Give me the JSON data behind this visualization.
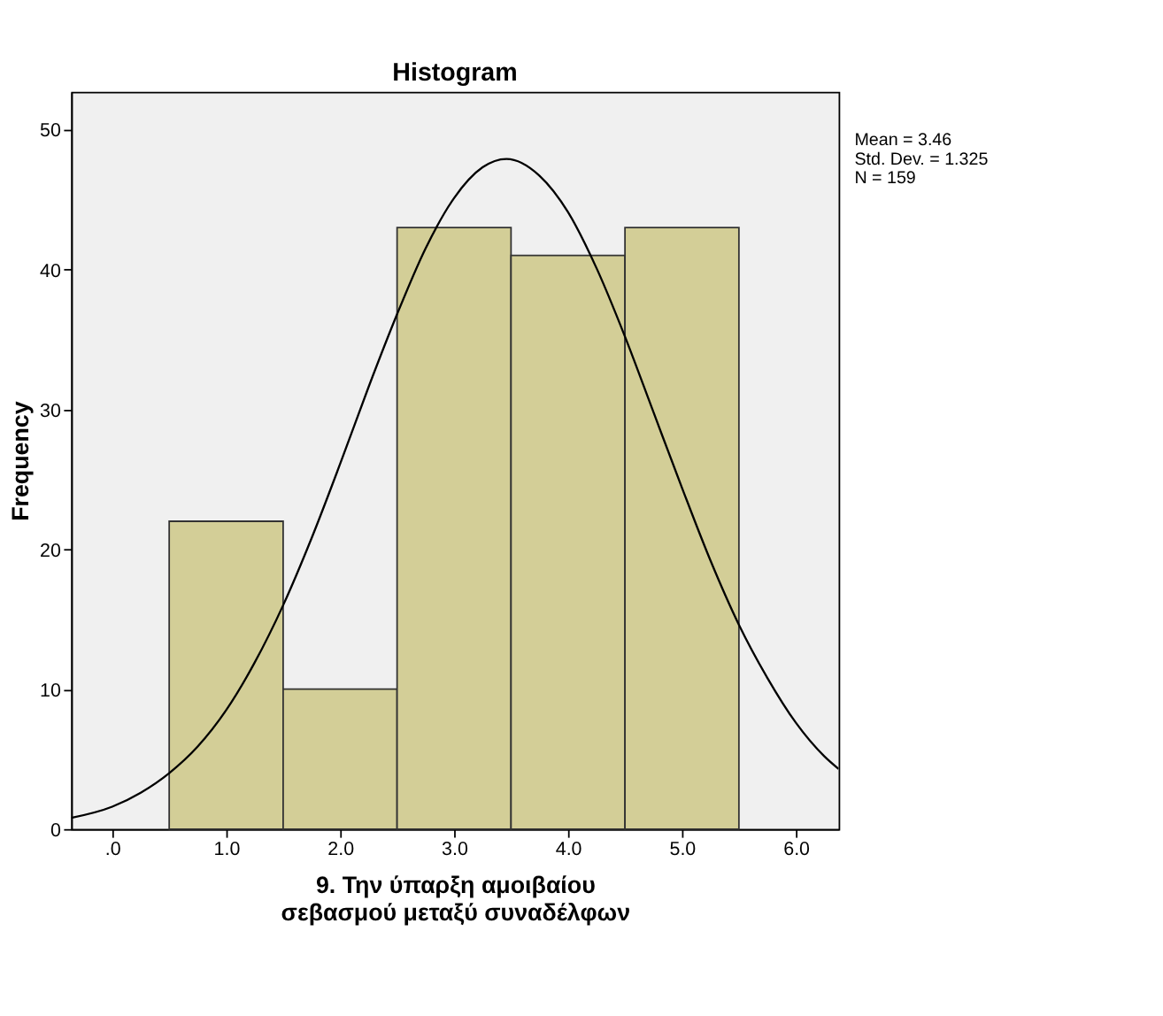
{
  "chart_data": {
    "type": "histogram",
    "title": "Histogram",
    "xlabel": "9. Την ύπαρξη αμοιβαίου σεβασμού μεταξύ συναδέλφων",
    "ylabel": "Frequency",
    "bins": [
      0.5,
      1.5,
      2.5,
      3.5,
      4.5,
      5.5
    ],
    "values": [
      22,
      10,
      43,
      41,
      43
    ],
    "color": "#d3ce97",
    "series": [
      {
        "type": "line",
        "color": "#000000",
        "x": [
          -0.36,
          0,
          0.25,
          0.5,
          0.75,
          1.0,
          1.25,
          1.5,
          1.75,
          2.0,
          2.25,
          2.5,
          2.75,
          3.0,
          3.25,
          3.46,
          3.75,
          4.0,
          4.25,
          4.5,
          4.75,
          5.0,
          5.25,
          5.5,
          5.75,
          6.0,
          6.25,
          6.375
        ],
        "values": [
          0.8,
          1.6,
          2.6,
          4.0,
          5.9,
          8.5,
          11.9,
          16.0,
          20.8,
          26.1,
          31.6,
          36.8,
          41.5,
          45.1,
          47.3,
          47.9,
          46.7,
          44.1,
          40.1,
          35.2,
          29.8,
          24.4,
          19.2,
          14.6,
          10.8,
          7.6,
          5.2,
          4.3
        ]
      }
    ],
    "xlim": [
      -0.36,
      6.375
    ],
    "ylim": [
      0,
      52.7
    ],
    "xticks": [
      {
        "value": 0,
        "label": ".0"
      },
      {
        "value": 1,
        "label": "1.0"
      },
      {
        "value": 2,
        "label": "2.0"
      },
      {
        "value": 3,
        "label": "3.0"
      },
      {
        "value": 4,
        "label": "4.0"
      },
      {
        "value": 5,
        "label": "5.0"
      },
      {
        "value": 6,
        "label": "6.0"
      }
    ],
    "yticks": [
      0,
      10,
      20,
      30,
      40,
      50
    ],
    "annotations": [
      "Mean = 3.46",
      "Std. Dev. = 1.325",
      "N = 159"
    ],
    "grid": false
  }
}
